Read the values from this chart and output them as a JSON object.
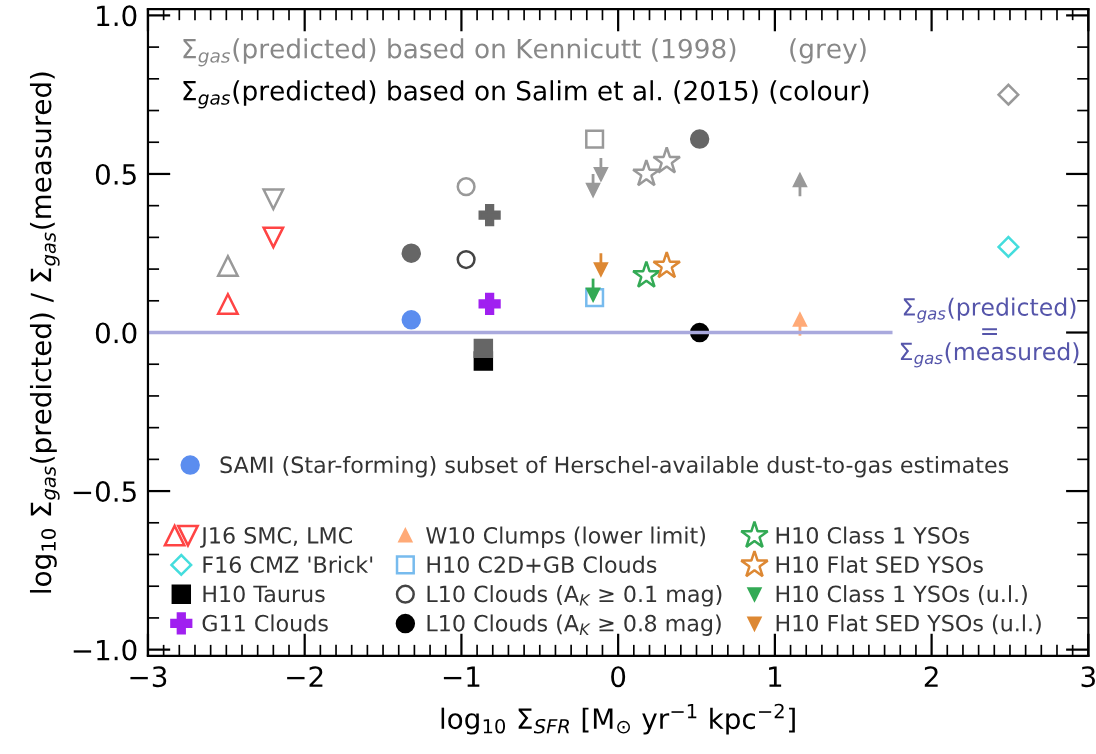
{
  "chart_data": {
    "type": "scatter",
    "xlabel": "log$_{10}$ Σ$_{SFR}$ [M$_{⊙}$ yr$^{−1}$ kpc$^{−2}$]",
    "ylabel": "log$_{10}$ Σ$_{gas}$(predicted) / Σ$_{gas}$(measured)",
    "annotations": [
      "Σ$_{gas}$(predicted) based on Kennicutt (1998)      (grey)",
      "Σ$_{gas}$(predicted) based on Salim et al. (2015) (colour)"
    ],
    "xlim": [
      -3,
      3
    ],
    "ylim": [
      -1.02,
      1.02
    ],
    "xticks": [
      {
        "value": -3,
        "label": "−3"
      },
      {
        "value": -2,
        "label": "−2"
      },
      {
        "value": -1,
        "label": "−1"
      },
      {
        "value": 0,
        "label": "0"
      },
      {
        "value": 1,
        "label": "1"
      },
      {
        "value": 2,
        "label": "2"
      },
      {
        "value": 3,
        "label": "3"
      }
    ],
    "yticks": [
      {
        "value": -1,
        "label": "−1.0"
      },
      {
        "value": -0.5,
        "label": "−0.5"
      },
      {
        "value": 0,
        "label": "0.0"
      },
      {
        "value": 0.5,
        "label": "0.5"
      },
      {
        "value": 1,
        "label": "1.0"
      }
    ],
    "ref_lines": [
      {
        "axis": "y",
        "value": 0,
        "label": "Σ$_{gas}$(predicted)\n=\nΣ$_{gas}$(measured)",
        "color": "#a9a9dd"
      }
    ],
    "legend": "bottom",
    "grid": false,
    "series": [
      {
        "name": "SAMI (Star-forming) subset of Herschel-available dust-to-gas estimates",
        "color": "#5b8def",
        "x": [
          -1.32
        ],
        "values": [
          0.04
        ],
        "marker": "circle"
      },
      {
        "name": "J16 SMC, LMC",
        "color": "#ff4444",
        "x": [
          -2.49,
          -2.2
        ],
        "values": [
          0.09,
          0.3
        ],
        "marker": "triangle"
      },
      {
        "name": "F16 CMZ 'Brick'",
        "color": "#44dddd",
        "x": [
          2.49
        ],
        "values": [
          0.27
        ],
        "marker": "diamond"
      },
      {
        "name": "H10 Taurus",
        "color": "#000000",
        "x": [
          -0.86
        ],
        "values": [
          -0.09
        ],
        "marker": "square"
      },
      {
        "name": "G11 Clouds",
        "color": "#a020f0",
        "x": [
          -0.82
        ],
        "values": [
          0.09
        ],
        "marker": "cross"
      },
      {
        "name": "W10 Clumps (lower limit)",
        "color": "#ffaa77",
        "x": [
          1.16
        ],
        "values": [
          0.04
        ],
        "errors": [
          [
            -0.01,
            0.04
          ]
        ],
        "marker": "triangle"
      },
      {
        "name": "H10 C2D+GB Clouds",
        "color": "#77bbee",
        "x": [
          -0.15
        ],
        "values": [
          0.11
        ],
        "marker": "square"
      },
      {
        "name": "L10 Clouds (A$_{K}$ ≥ 0.1 mag)",
        "color": "#444444",
        "x": [
          -0.97
        ],
        "values": [
          0.23
        ],
        "marker": "circle"
      },
      {
        "name": "L10 Clouds (A$_{K}$ ≥ 0.8 mag)",
        "color": "#000000",
        "x": [
          0.52
        ],
        "values": [
          0.0
        ],
        "marker": "circle"
      },
      {
        "name": "H10 Class 1 YSOs",
        "color": "#33aa55",
        "x": [
          0.18
        ],
        "values": [
          0.18
        ],
        "marker": "star"
      },
      {
        "name": "H10 Flat SED YSOs",
        "color": "#dd8833",
        "x": [
          0.31
        ],
        "values": [
          0.21
        ],
        "marker": "star"
      },
      {
        "name": "H10 Class 1 YSOs (u.l.)",
        "color": "#33aa55",
        "x": [
          -0.16
        ],
        "values": [
          0.12
        ],
        "errors": [
          [
            0.12,
            0.17
          ]
        ],
        "marker": "triangle"
      },
      {
        "name": "H10 Flat SED YSOs (u.l.)",
        "color": "#dd8833",
        "x": [
          -0.11
        ],
        "values": [
          0.2
        ],
        "errors": [
          [
            0.2,
            0.25
          ]
        ],
        "marker": "triangle"
      },
      {
        "color": "#666666",
        "x": [
          -1.32
        ],
        "values": [
          0.25
        ],
        "marker": "circle"
      },
      {
        "color": "#999999",
        "x": [
          -2.49,
          -2.2
        ],
        "values": [
          0.21,
          0.42
        ],
        "marker": "triangle"
      },
      {
        "color": "#999999",
        "x": [
          2.49
        ],
        "values": [
          0.75
        ],
        "marker": "diamond"
      },
      {
        "color": "#666666",
        "x": [
          -0.86
        ],
        "values": [
          -0.05
        ],
        "marker": "square"
      },
      {
        "color": "#666666",
        "x": [
          -0.82
        ],
        "values": [
          0.37
        ],
        "marker": "cross"
      },
      {
        "color": "#999999",
        "x": [
          1.16
        ],
        "values": [
          0.48
        ],
        "errors": [
          [
            0.43,
            0.48
          ]
        ],
        "marker": "triangle"
      },
      {
        "color": "#999999",
        "x": [
          -0.15
        ],
        "values": [
          0.61
        ],
        "marker": "square"
      },
      {
        "color": "#999999",
        "x": [
          -0.97
        ],
        "values": [
          0.46
        ],
        "marker": "circle"
      },
      {
        "color": "#666666",
        "x": [
          0.52
        ],
        "values": [
          0.61
        ],
        "marker": "circle"
      },
      {
        "color": "#999999",
        "x": [
          0.18
        ],
        "values": [
          0.5
        ],
        "marker": "star"
      },
      {
        "color": "#999999",
        "x": [
          0.31
        ],
        "values": [
          0.54
        ],
        "marker": "star"
      },
      {
        "color": "#999999",
        "x": [
          -0.16
        ],
        "values": [
          0.45
        ],
        "errors": [
          [
            0.45,
            0.5
          ]
        ],
        "marker": "triangle"
      },
      {
        "color": "#999999",
        "x": [
          -0.11
        ],
        "values": [
          0.5
        ],
        "errors": [
          [
            0.5,
            0.55
          ]
        ],
        "marker": "triangle"
      }
    ]
  }
}
